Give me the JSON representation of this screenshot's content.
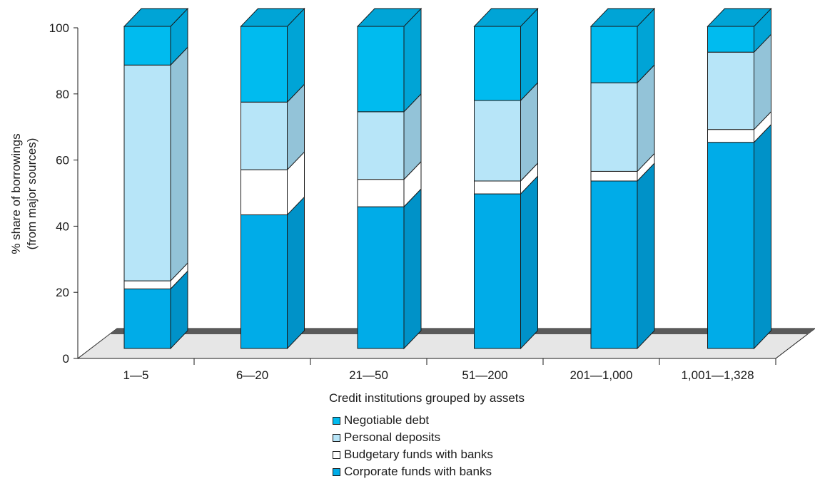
{
  "chart_data": {
    "type": "bar",
    "stacked": true,
    "three_d": true,
    "xlabel": "Credit institutions grouped by assets",
    "ylabel_lines": [
      "% share of borrowings",
      "(from major sources)"
    ],
    "ylim": [
      0,
      100
    ],
    "yticks": [
      0,
      20,
      40,
      60,
      80,
      100
    ],
    "categories": [
      "1—5",
      "6—20",
      "21—50",
      "51—200",
      "201—1,000",
      "1,001—1,328"
    ],
    "series": [
      {
        "name": "Corporate funds with banks",
        "color": "#00ace8",
        "values": [
          18.5,
          41.5,
          44,
          48,
          52,
          64
        ]
      },
      {
        "name": "Budgetary funds with banks",
        "color": "#ffffff",
        "values": [
          2.5,
          14,
          8.5,
          4,
          3,
          4
        ]
      },
      {
        "name": "Personal deposits",
        "color": "#b7e5f8",
        "values": [
          67,
          21,
          21,
          25,
          27.5,
          24
        ]
      },
      {
        "name": "Negotiable debt",
        "color": "#00bbef",
        "values": [
          12,
          23.5,
          26.5,
          23,
          17.5,
          8
        ]
      }
    ],
    "legend_order": [
      "Negotiable debt",
      "Personal deposits",
      "Budgetary funds with banks",
      "Corporate funds with banks"
    ],
    "legend_position": "bottom-center",
    "grid": false
  }
}
